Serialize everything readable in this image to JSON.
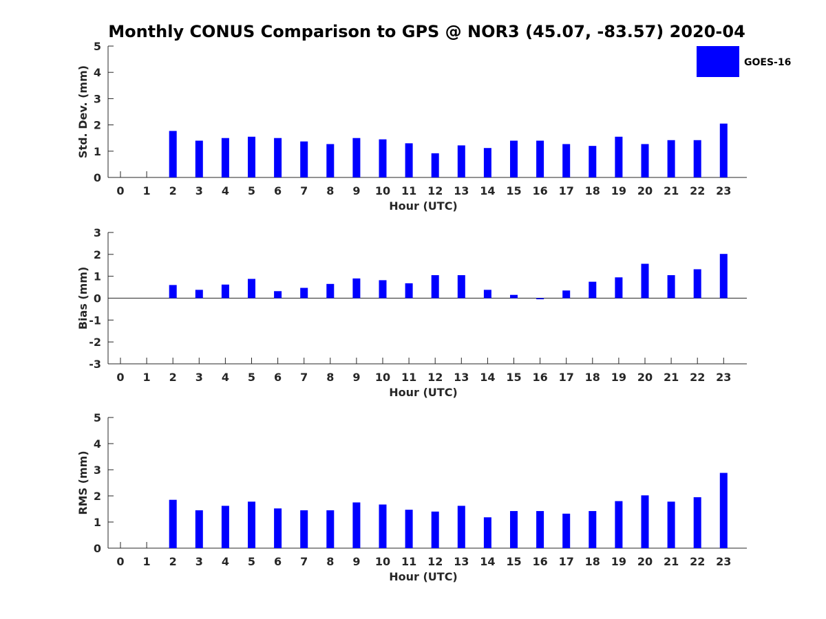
{
  "chart_data": {
    "title": "Monthly CONUS Comparison to GPS @ NOR3 (45.07, -83.57) 2020-04",
    "type": "bar",
    "bar_color": "#0000ff",
    "legend": {
      "entries": [
        "GOES-16"
      ],
      "placement": "top-right"
    },
    "panels": [
      {
        "type": "bar",
        "xlabel": "Hour (UTC)",
        "ylabel": "Std. Dev. (mm)",
        "ylim": [
          0,
          5
        ],
        "yticks": [
          "0",
          "1",
          "2",
          "3",
          "4",
          "5"
        ],
        "categories": [
          "0",
          "1",
          "2",
          "3",
          "4",
          "5",
          "6",
          "7",
          "8",
          "9",
          "10",
          "11",
          "12",
          "13",
          "14",
          "15",
          "16",
          "17",
          "18",
          "19",
          "20",
          "21",
          "22",
          "23"
        ],
        "series": [
          {
            "name": "GOES-16",
            "values": [
              null,
              null,
              1.77,
              1.4,
              1.5,
              1.55,
              1.5,
              1.37,
              1.27,
              1.5,
              1.45,
              1.3,
              0.92,
              1.22,
              1.12,
              1.4,
              1.4,
              1.27,
              1.2,
              1.55,
              1.27,
              1.42,
              1.42,
              2.05
            ]
          }
        ]
      },
      {
        "type": "bar",
        "xlabel": "Hour (UTC)",
        "ylabel": "Bias (mm)",
        "ylim": [
          -3,
          3
        ],
        "yticks": [
          "-3",
          "-2",
          "-1",
          "0",
          "1",
          "2",
          "3"
        ],
        "categories": [
          "0",
          "1",
          "2",
          "3",
          "4",
          "5",
          "6",
          "7",
          "8",
          "9",
          "10",
          "11",
          "12",
          "13",
          "14",
          "15",
          "16",
          "17",
          "18",
          "19",
          "20",
          "21",
          "22",
          "23"
        ],
        "series": [
          {
            "name": "GOES-16",
            "values": [
              null,
              null,
              0.6,
              0.38,
              0.62,
              0.88,
              0.32,
              0.47,
              0.65,
              0.9,
              0.82,
              0.68,
              1.05,
              1.05,
              0.38,
              0.15,
              -0.05,
              0.35,
              0.75,
              0.95,
              1.57,
              1.05,
              1.32,
              2.02
            ]
          }
        ]
      },
      {
        "type": "bar",
        "xlabel": "Hour (UTC)",
        "ylabel": "RMS (mm)",
        "ylim": [
          0,
          5
        ],
        "yticks": [
          "0",
          "1",
          "2",
          "3",
          "4",
          "5"
        ],
        "categories": [
          "0",
          "1",
          "2",
          "3",
          "4",
          "5",
          "6",
          "7",
          "8",
          "9",
          "10",
          "11",
          "12",
          "13",
          "14",
          "15",
          "16",
          "17",
          "18",
          "19",
          "20",
          "21",
          "22",
          "23"
        ],
        "series": [
          {
            "name": "GOES-16",
            "values": [
              null,
              null,
              1.85,
              1.45,
              1.62,
              1.78,
              1.52,
              1.45,
              1.45,
              1.75,
              1.67,
              1.47,
              1.4,
              1.62,
              1.18,
              1.42,
              1.42,
              1.32,
              1.42,
              1.8,
              2.02,
              1.78,
              1.95,
              2.88
            ]
          }
        ]
      }
    ]
  }
}
